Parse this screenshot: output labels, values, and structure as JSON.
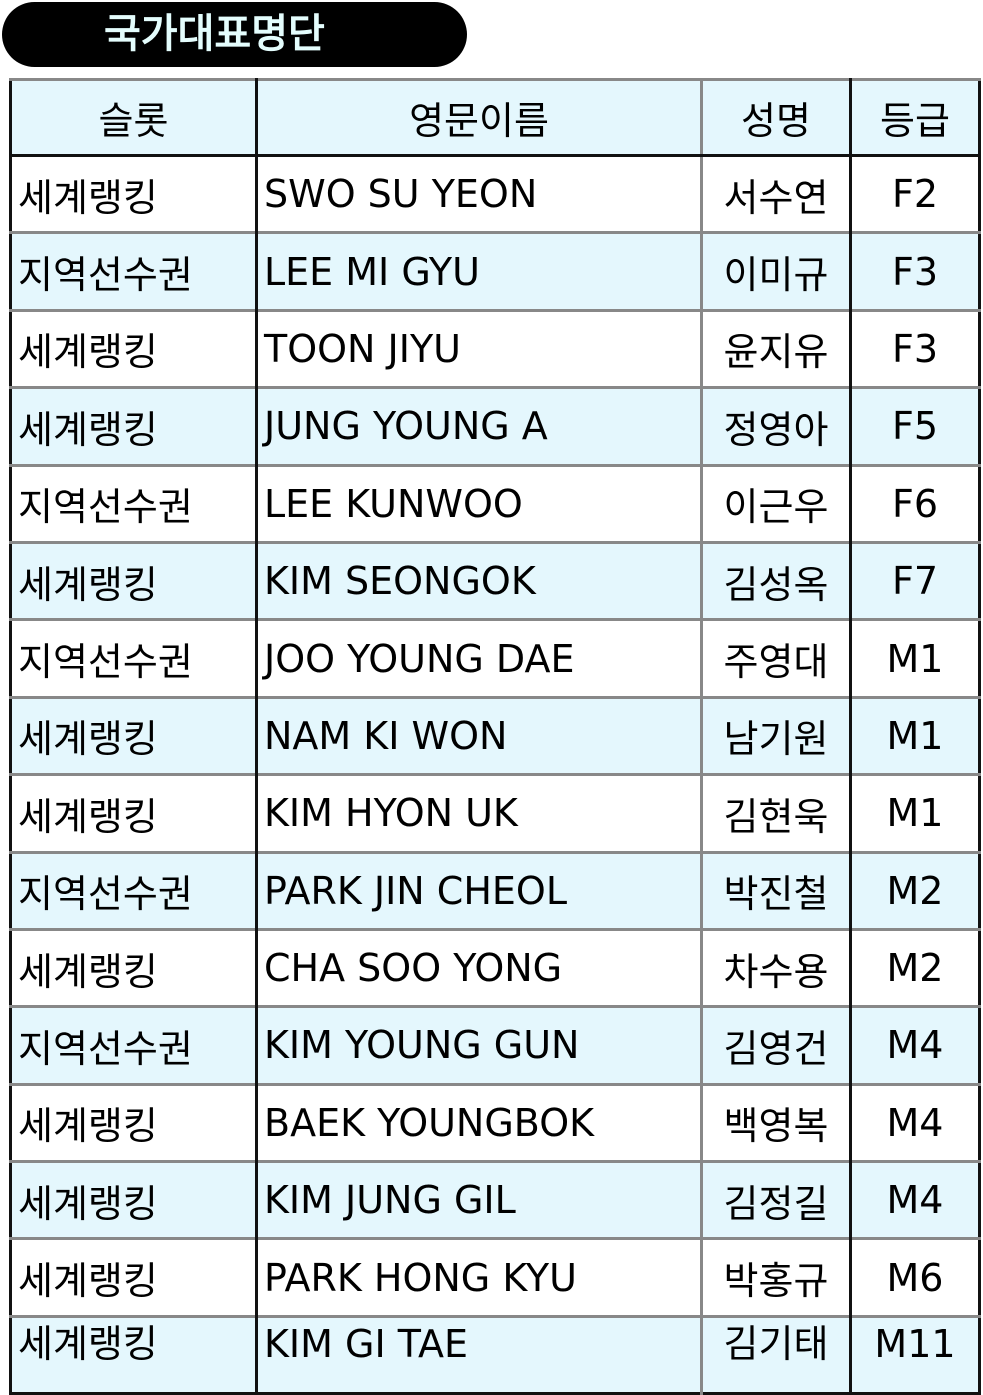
{
  "title": "국가대표명단",
  "headers": [
    "슬롯",
    "영문이름",
    "성명",
    "등급"
  ],
  "rows": [
    {
      "slot": "세계랭킹",
      "english_name": "SWO SU YEON",
      "name": "서수연",
      "class": "F2"
    },
    {
      "slot": "지역선수권",
      "english_name": "LEE MI GYU",
      "name": "이미규",
      "class": "F3"
    },
    {
      "slot": "세계랭킹",
      "english_name": "TOON JIYU",
      "name": "윤지유",
      "class": "F3"
    },
    {
      "slot": "세계랭킹",
      "english_name": "JUNG YOUNG A",
      "name": "정영아",
      "class": "F5"
    },
    {
      "slot": "지역선수권",
      "english_name": "LEE KUNWOO",
      "name": "이근우",
      "class": "F6"
    },
    {
      "slot": "세계랭킹",
      "english_name": "KIM SEONGOK",
      "name": "김성옥",
      "class": "F7"
    },
    {
      "slot": "지역선수권",
      "english_name": "JOO YOUNG DAE",
      "name": "주영대",
      "class": "M1"
    },
    {
      "slot": "세계랭킹",
      "english_name": "NAM KI WON",
      "name": "남기원",
      "class": "M1"
    },
    {
      "slot": "세계랭킹",
      "english_name": "KIM HYON UK",
      "name": "김현욱",
      "class": "M1"
    },
    {
      "slot": "지역선수권",
      "english_name": "PARK JIN CHEOL",
      "name": "박진철",
      "class": "M2"
    },
    {
      "slot": "세계랭킹",
      "english_name": "CHA SOO YONG",
      "name": "차수용",
      "class": "M2"
    },
    {
      "slot": "지역선수권",
      "english_name": "KIM YOUNG GUN",
      "name": "김영건",
      "class": "M4"
    },
    {
      "slot": "세계랭킹",
      "english_name": "BAEK YOUNGBOK",
      "name": "백영복",
      "class": "M4"
    },
    {
      "slot": "세계랭킹",
      "english_name": "KIM JUNG GIL",
      "name": "김정길",
      "class": "M4"
    },
    {
      "slot": "세계랭킹",
      "english_name": "PARK HONG KYU",
      "name": "박홍규",
      "class": "M6"
    },
    {
      "slot": "세계랭킹",
      "english_name": "KIM GI TAE",
      "name": "김기태",
      "class": "M11"
    }
  ],
  "colors": {
    "header_bg": "#e4f7fd",
    "alt_row_bg": "#e4f7fd",
    "title_bg": "#000000",
    "title_text": "#e4fdfd"
  }
}
